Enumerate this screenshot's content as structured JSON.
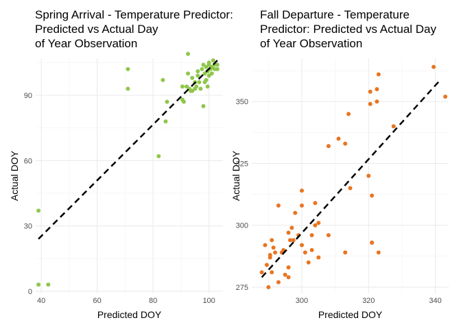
{
  "chart_data": [
    {
      "type": "scatter",
      "title": "Spring Arrival - Temperature Predictor:\nPredicted vs Actual Day\nof Year Observation",
      "xlabel": "Predicted DOY",
      "ylabel": "Actual DOY",
      "xlim": [
        38,
        105
      ],
      "ylim": [
        -1,
        107
      ],
      "xticks": [
        40,
        60,
        80,
        100
      ],
      "yticks": [
        0,
        30,
        60,
        90
      ],
      "point_color": "#8fc74a",
      "line": {
        "style": "dashed",
        "color": "#000000",
        "x": [
          39,
          103
        ],
        "y": [
          24,
          106
        ]
      },
      "points": [
        [
          39,
          37
        ],
        [
          39,
          3
        ],
        [
          42.5,
          3
        ],
        [
          71,
          102
        ],
        [
          71,
          93
        ],
        [
          82,
          62
        ],
        [
          83.5,
          97
        ],
        [
          84.5,
          78
        ],
        [
          85,
          87
        ],
        [
          90.5,
          94
        ],
        [
          90.5,
          88
        ],
        [
          91,
          87
        ],
        [
          92,
          94
        ],
        [
          92.5,
          109
        ],
        [
          92.5,
          100
        ],
        [
          93,
          93
        ],
        [
          93.5,
          92
        ],
        [
          94,
          98
        ],
        [
          94,
          92
        ],
        [
          95,
          96
        ],
        [
          95,
          93
        ],
        [
          95.5,
          94
        ],
        [
          96,
          99
        ],
        [
          96,
          101
        ],
        [
          96.5,
          96
        ],
        [
          97,
          93
        ],
        [
          97.5,
          102
        ],
        [
          98,
          104
        ],
        [
          98,
          85
        ],
        [
          98.5,
          100
        ],
        [
          98.5,
          96
        ],
        [
          99,
          103
        ],
        [
          99,
          97
        ],
        [
          99.5,
          101
        ],
        [
          99.5,
          94
        ],
        [
          100,
          105
        ],
        [
          100,
          104
        ],
        [
          100,
          99
        ],
        [
          100.5,
          102
        ],
        [
          101,
          100
        ],
        [
          101,
          103
        ],
        [
          101.5,
          106
        ],
        [
          102,
          104
        ],
        [
          102,
          102
        ],
        [
          103,
          102
        ],
        [
          103,
          104
        ]
      ]
    },
    {
      "type": "scatter",
      "title": "Fall Departure - Temperature\nPredictor: Predicted vs Actual Day\nof Year Observation",
      "xlabel": "Predicted DOY",
      "ylabel": "Actual DOY",
      "xlim": [
        285,
        344
      ],
      "ylim": [
        272.5,
        367.5
      ],
      "xticks": [
        300,
        320,
        340
      ],
      "yticks": [
        275,
        300,
        325,
        350
      ],
      "point_color": "#e87520",
      "line": {
        "style": "dashed",
        "color": "#000000",
        "x": [
          288,
          341
        ],
        "y": [
          279,
          358
        ]
      },
      "points": [
        [
          288,
          281
        ],
        [
          289,
          292
        ],
        [
          289.5,
          284
        ],
        [
          290,
          275
        ],
        [
          290.5,
          287
        ],
        [
          290.5,
          288
        ],
        [
          291,
          281
        ],
        [
          291,
          294
        ],
        [
          291.5,
          291
        ],
        [
          292,
          289
        ],
        [
          293,
          308
        ],
        [
          293,
          277
        ],
        [
          294,
          289
        ],
        [
          294.5,
          290
        ],
        [
          295,
          280
        ],
        [
          296,
          279
        ],
        [
          296,
          283
        ],
        [
          296,
          297
        ],
        [
          296.5,
          294
        ],
        [
          297,
          299
        ],
        [
          297.5,
          294
        ],
        [
          298,
          305
        ],
        [
          299,
          296
        ],
        [
          300,
          308
        ],
        [
          300,
          292
        ],
        [
          300,
          314
        ],
        [
          301,
          289
        ],
        [
          302,
          285
        ],
        [
          303,
          296
        ],
        [
          303,
          290
        ],
        [
          304,
          309
        ],
        [
          304,
          300
        ],
        [
          305,
          287
        ],
        [
          305,
          301
        ],
        [
          308,
          296
        ],
        [
          308,
          332
        ],
        [
          311,
          335
        ],
        [
          313,
          289
        ],
        [
          313,
          333
        ],
        [
          314,
          345
        ],
        [
          314.5,
          315
        ],
        [
          320,
          320
        ],
        [
          320.5,
          354
        ],
        [
          320.5,
          349
        ],
        [
          321,
          312
        ],
        [
          321,
          293
        ],
        [
          321,
          293
        ],
        [
          322.5,
          355
        ],
        [
          322.5,
          350
        ],
        [
          323,
          361
        ],
        [
          323,
          289
        ],
        [
          327.5,
          340
        ],
        [
          339.5,
          364
        ],
        [
          343,
          352
        ]
      ]
    }
  ]
}
